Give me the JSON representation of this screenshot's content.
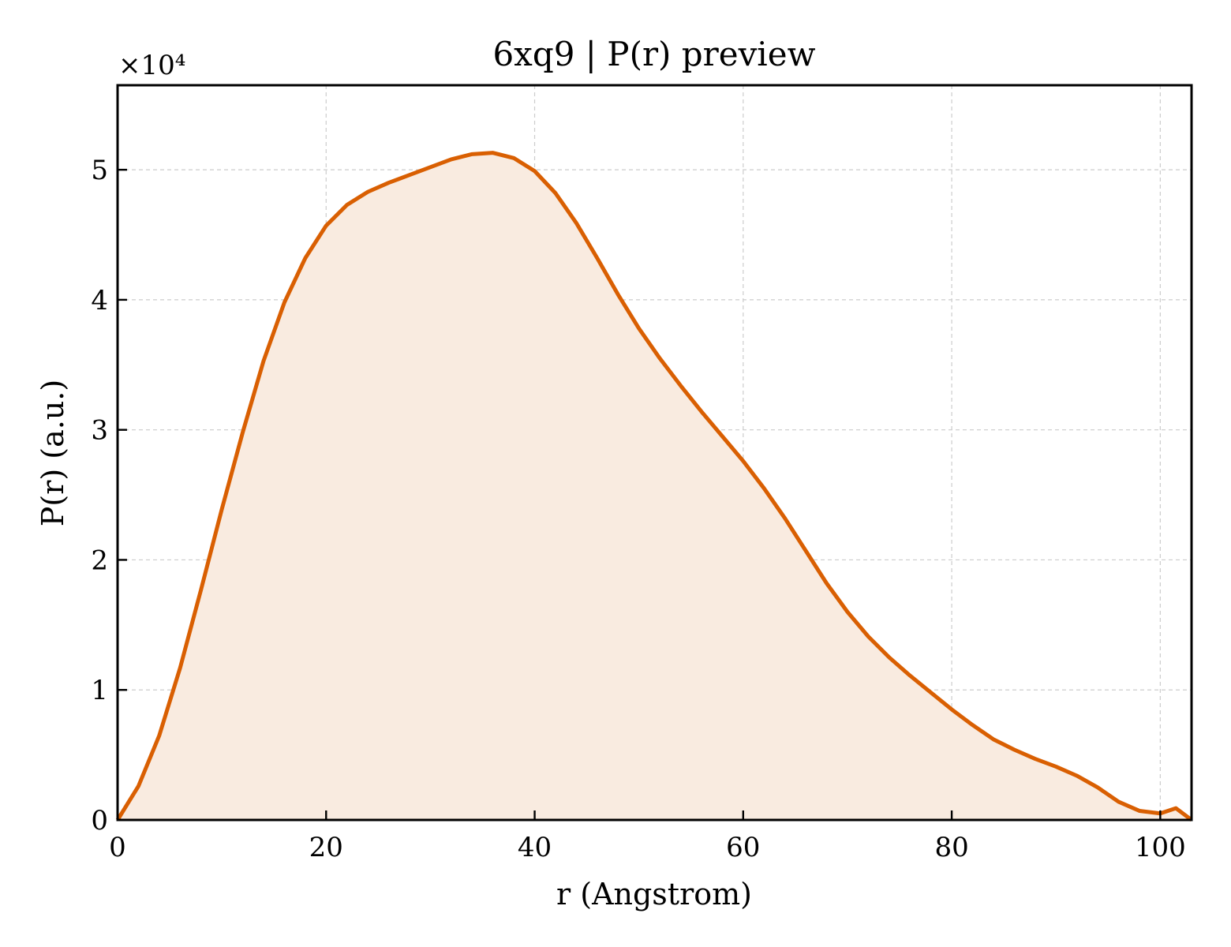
{
  "chart_data": {
    "type": "area",
    "title": "6xq9 | P(r) preview",
    "xlabel": "r (Angstrom)",
    "ylabel": "P(r) (a.u.)",
    "y_offset_label": "×10⁴",
    "xlim": [
      0,
      103
    ],
    "ylim": [
      0,
      5.65
    ],
    "x_ticks": [
      0,
      20,
      40,
      60,
      80,
      100
    ],
    "x_tick_labels": [
      "0",
      "20",
      "40",
      "60",
      "80",
      "100"
    ],
    "y_ticks": [
      0,
      1,
      2,
      3,
      4,
      5
    ],
    "y_tick_labels": [
      "0",
      "1",
      "2",
      "3",
      "4",
      "5"
    ],
    "grid": true,
    "line_color": "#d95f02",
    "fill_color": "#f9ebe0",
    "series": [
      {
        "x": [
          0,
          2,
          4,
          6,
          8,
          10,
          12,
          14,
          16,
          18,
          20,
          22,
          24,
          26,
          28,
          30,
          32,
          34,
          36,
          38,
          40,
          42,
          44,
          46,
          48,
          50,
          52,
          54,
          56,
          58,
          60,
          62,
          64,
          66,
          68,
          70,
          72,
          74,
          76,
          78,
          80,
          82,
          84,
          86,
          88,
          90,
          92,
          94,
          96,
          98,
          100,
          101.5,
          103
        ],
        "y": [
          0,
          0.26,
          0.65,
          1.17,
          1.77,
          2.39,
          2.98,
          3.53,
          3.98,
          4.32,
          4.57,
          4.73,
          4.83,
          4.9,
          4.96,
          5.02,
          5.08,
          5.12,
          5.13,
          5.09,
          4.99,
          4.82,
          4.59,
          4.32,
          4.04,
          3.78,
          3.55,
          3.34,
          3.14,
          2.95,
          2.76,
          2.55,
          2.32,
          2.07,
          1.82,
          1.6,
          1.41,
          1.25,
          1.11,
          0.98,
          0.85,
          0.73,
          0.62,
          0.54,
          0.47,
          0.41,
          0.34,
          0.25,
          0.14,
          0.07,
          0.05,
          0.09,
          0.0
        ]
      }
    ]
  }
}
